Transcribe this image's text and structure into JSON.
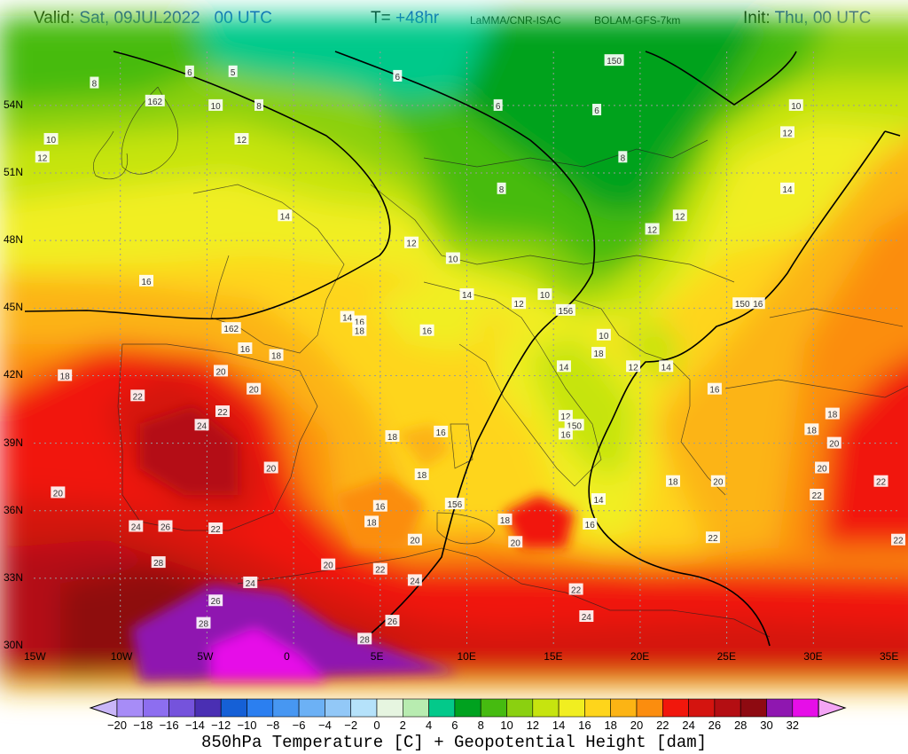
{
  "header": {
    "valid_label": "Valid:",
    "valid_value": "Sat, 09JUL2022   00 UTC",
    "step_label": "T=",
    "step_value": "+48hr",
    "source": "LaMMA/CNR-ISAC",
    "model": "BOLAM-GFS-7km",
    "init_label": "Init:",
    "init_value": "Thu, 00 UTC"
  },
  "map": {
    "lon_ticks": [
      "15W",
      "10W",
      "5W",
      "0",
      "5E",
      "10E",
      "15E",
      "20E",
      "25E",
      "30E",
      "35E"
    ],
    "lat_ticks": [
      "54N",
      "51N",
      "48N",
      "45N",
      "42N",
      "39N",
      "36N",
      "33N",
      "30N"
    ],
    "temperature_labels": [
      {
        "text": "6",
        "lon": -6,
        "lat": 55.5
      },
      {
        "text": "5",
        "lon": -3.5,
        "lat": 55.5
      },
      {
        "text": "8",
        "lon": -11.5,
        "lat": 55
      },
      {
        "text": "162",
        "lon": -8,
        "lat": 54.2
      },
      {
        "text": "10",
        "lon": -4.5,
        "lat": 54
      },
      {
        "text": "8",
        "lon": -2,
        "lat": 54
      },
      {
        "text": "10",
        "lon": -14,
        "lat": 52.5
      },
      {
        "text": "12",
        "lon": -14.5,
        "lat": 51.7
      },
      {
        "text": "12",
        "lon": -3,
        "lat": 52.5
      },
      {
        "text": "6",
        "lon": 6,
        "lat": 55.3
      },
      {
        "text": "150",
        "lon": 18.5,
        "lat": 56
      },
      {
        "text": "6",
        "lon": 11.8,
        "lat": 54
      },
      {
        "text": "6",
        "lon": 17.5,
        "lat": 53.8
      },
      {
        "text": "8",
        "lon": 19,
        "lat": 51.7
      },
      {
        "text": "8",
        "lon": 12,
        "lat": 50.3
      },
      {
        "text": "10",
        "lon": 29,
        "lat": 54
      },
      {
        "text": "12",
        "lon": 28.5,
        "lat": 52.8
      },
      {
        "text": "14",
        "lon": 28.5,
        "lat": 50.3
      },
      {
        "text": "12",
        "lon": 22.3,
        "lat": 49.1
      },
      {
        "text": "12",
        "lon": 20.7,
        "lat": 48.5
      },
      {
        "text": "14",
        "lon": -0.5,
        "lat": 49.1
      },
      {
        "text": "12",
        "lon": 6.8,
        "lat": 47.9
      },
      {
        "text": "10",
        "lon": 9.2,
        "lat": 47.2
      },
      {
        "text": "16",
        "lon": -8.5,
        "lat": 46.2
      },
      {
        "text": "14",
        "lon": 10,
        "lat": 45.6
      },
      {
        "text": "12",
        "lon": 13,
        "lat": 45.2
      },
      {
        "text": "10",
        "lon": 14.5,
        "lat": 45.6
      },
      {
        "text": "156",
        "lon": 15.7,
        "lat": 44.9
      },
      {
        "text": "150",
        "lon": 25.9,
        "lat": 45.2
      },
      {
        "text": "16",
        "lon": 26.8,
        "lat": 45.2
      },
      {
        "text": "14",
        "lon": 3.1,
        "lat": 44.6
      },
      {
        "text": "16",
        "lon": 3.8,
        "lat": 44.4
      },
      {
        "text": "18",
        "lon": 3.8,
        "lat": 44
      },
      {
        "text": "162",
        "lon": -3.6,
        "lat": 44.1
      },
      {
        "text": "16",
        "lon": 7.7,
        "lat": 44
      },
      {
        "text": "10",
        "lon": 17.9,
        "lat": 43.8
      },
      {
        "text": "16",
        "lon": -2.8,
        "lat": 43.2
      },
      {
        "text": "18",
        "lon": -1,
        "lat": 42.9
      },
      {
        "text": "18",
        "lon": 17.6,
        "lat": 43
      },
      {
        "text": "12",
        "lon": 19.6,
        "lat": 42.4
      },
      {
        "text": "14",
        "lon": 15.6,
        "lat": 42.4
      },
      {
        "text": "14",
        "lon": 21.5,
        "lat": 42.4
      },
      {
        "text": "18",
        "lon": -13.2,
        "lat": 42
      },
      {
        "text": "20",
        "lon": -4.2,
        "lat": 42.2
      },
      {
        "text": "20",
        "lon": -2.3,
        "lat": 41.4
      },
      {
        "text": "16",
        "lon": 24.3,
        "lat": 41.4
      },
      {
        "text": "22",
        "lon": -9,
        "lat": 41.1
      },
      {
        "text": "22",
        "lon": -4.1,
        "lat": 40.4
      },
      {
        "text": "24",
        "lon": -5.3,
        "lat": 39.8
      },
      {
        "text": "18",
        "lon": 5.7,
        "lat": 39.3
      },
      {
        "text": "16",
        "lon": 8.5,
        "lat": 39.5
      },
      {
        "text": "12",
        "lon": 15.7,
        "lat": 40.2
      },
      {
        "text": "150",
        "lon": 16.2,
        "lat": 39.8
      },
      {
        "text": "16",
        "lon": 15.7,
        "lat": 39.4
      },
      {
        "text": "18",
        "lon": 31.1,
        "lat": 40.3
      },
      {
        "text": "18",
        "lon": 29.9,
        "lat": 39.6
      },
      {
        "text": "20",
        "lon": 31.2,
        "lat": 39
      },
      {
        "text": "20",
        "lon": -1.3,
        "lat": 37.9
      },
      {
        "text": "18",
        "lon": 7.4,
        "lat": 37.6
      },
      {
        "text": "20",
        "lon": 30.5,
        "lat": 37.9
      },
      {
        "text": "18",
        "lon": 21.9,
        "lat": 37.3
      },
      {
        "text": "20",
        "lon": 24.5,
        "lat": 37.3
      },
      {
        "text": "22",
        "lon": 33.9,
        "lat": 37.3
      },
      {
        "text": "20",
        "lon": -13.6,
        "lat": 36.8
      },
      {
        "text": "22",
        "lon": 30.2,
        "lat": 36.7
      },
      {
        "text": "16",
        "lon": 5,
        "lat": 36.2
      },
      {
        "text": "156",
        "lon": 9.3,
        "lat": 36.3
      },
      {
        "text": "14",
        "lon": 17.6,
        "lat": 36.5
      },
      {
        "text": "18",
        "lon": 4.5,
        "lat": 35.5
      },
      {
        "text": "18",
        "lon": 12.2,
        "lat": 35.6
      },
      {
        "text": "16",
        "lon": 17.1,
        "lat": 35.4
      },
      {
        "text": "24",
        "lon": -9.1,
        "lat": 35.3
      },
      {
        "text": "26",
        "lon": -7.4,
        "lat": 35.3
      },
      {
        "text": "22",
        "lon": -4.5,
        "lat": 35.2
      },
      {
        "text": "20",
        "lon": 7,
        "lat": 34.7
      },
      {
        "text": "20",
        "lon": 12.8,
        "lat": 34.6
      },
      {
        "text": "22",
        "lon": 24.2,
        "lat": 34.8
      },
      {
        "text": "22",
        "lon": 34.9,
        "lat": 34.7
      },
      {
        "text": "28",
        "lon": -7.8,
        "lat": 33.7
      },
      {
        "text": "20",
        "lon": 2,
        "lat": 33.6
      },
      {
        "text": "22",
        "lon": 5,
        "lat": 33.4
      },
      {
        "text": "24",
        "lon": 7,
        "lat": 32.9
      },
      {
        "text": "24",
        "lon": -2.5,
        "lat": 32.8
      },
      {
        "text": "22",
        "lon": 16.3,
        "lat": 32.5
      },
      {
        "text": "26",
        "lon": -4.5,
        "lat": 32
      },
      {
        "text": "24",
        "lon": 16.9,
        "lat": 31.3
      },
      {
        "text": "26",
        "lon": 5.7,
        "lat": 31.1
      },
      {
        "text": "28",
        "lon": -5.2,
        "lat": 31
      },
      {
        "text": "28",
        "lon": 4.1,
        "lat": 30.3
      }
    ]
  },
  "colorbar": {
    "labels": [
      "−20",
      "−18",
      "−16",
      "−14",
      "−12",
      "−10",
      "−8",
      "−6",
      "−4",
      "−2",
      "0",
      "2",
      "4",
      "6",
      "8",
      "10",
      "12",
      "14",
      "16",
      "18",
      "20",
      "22",
      "24",
      "26",
      "28",
      "30",
      "32"
    ],
    "colors": [
      "#a78cf7",
      "#8d6ef0",
      "#7553dc",
      "#4a2fb3",
      "#1560d6",
      "#2b7ff0",
      "#4797f2",
      "#6cb1f5",
      "#92c8f7",
      "#b5e2fa",
      "#e6f5e0",
      "#b8ecb0",
      "#03c98a",
      "#00a21f",
      "#46bb10",
      "#8bd010",
      "#c6e40f",
      "#f1ee20",
      "#fed51b",
      "#fcb414",
      "#fb8d0e",
      "#f1170c",
      "#d4140f",
      "#b40e12",
      "#8e0a11",
      "#8f17b0",
      "#e60ee8"
    ],
    "under_color": "#c9b6f8",
    "over_color": "#f4a5f4",
    "title": "850hPa Temperature [C] + Geopotential Height [dam]"
  }
}
